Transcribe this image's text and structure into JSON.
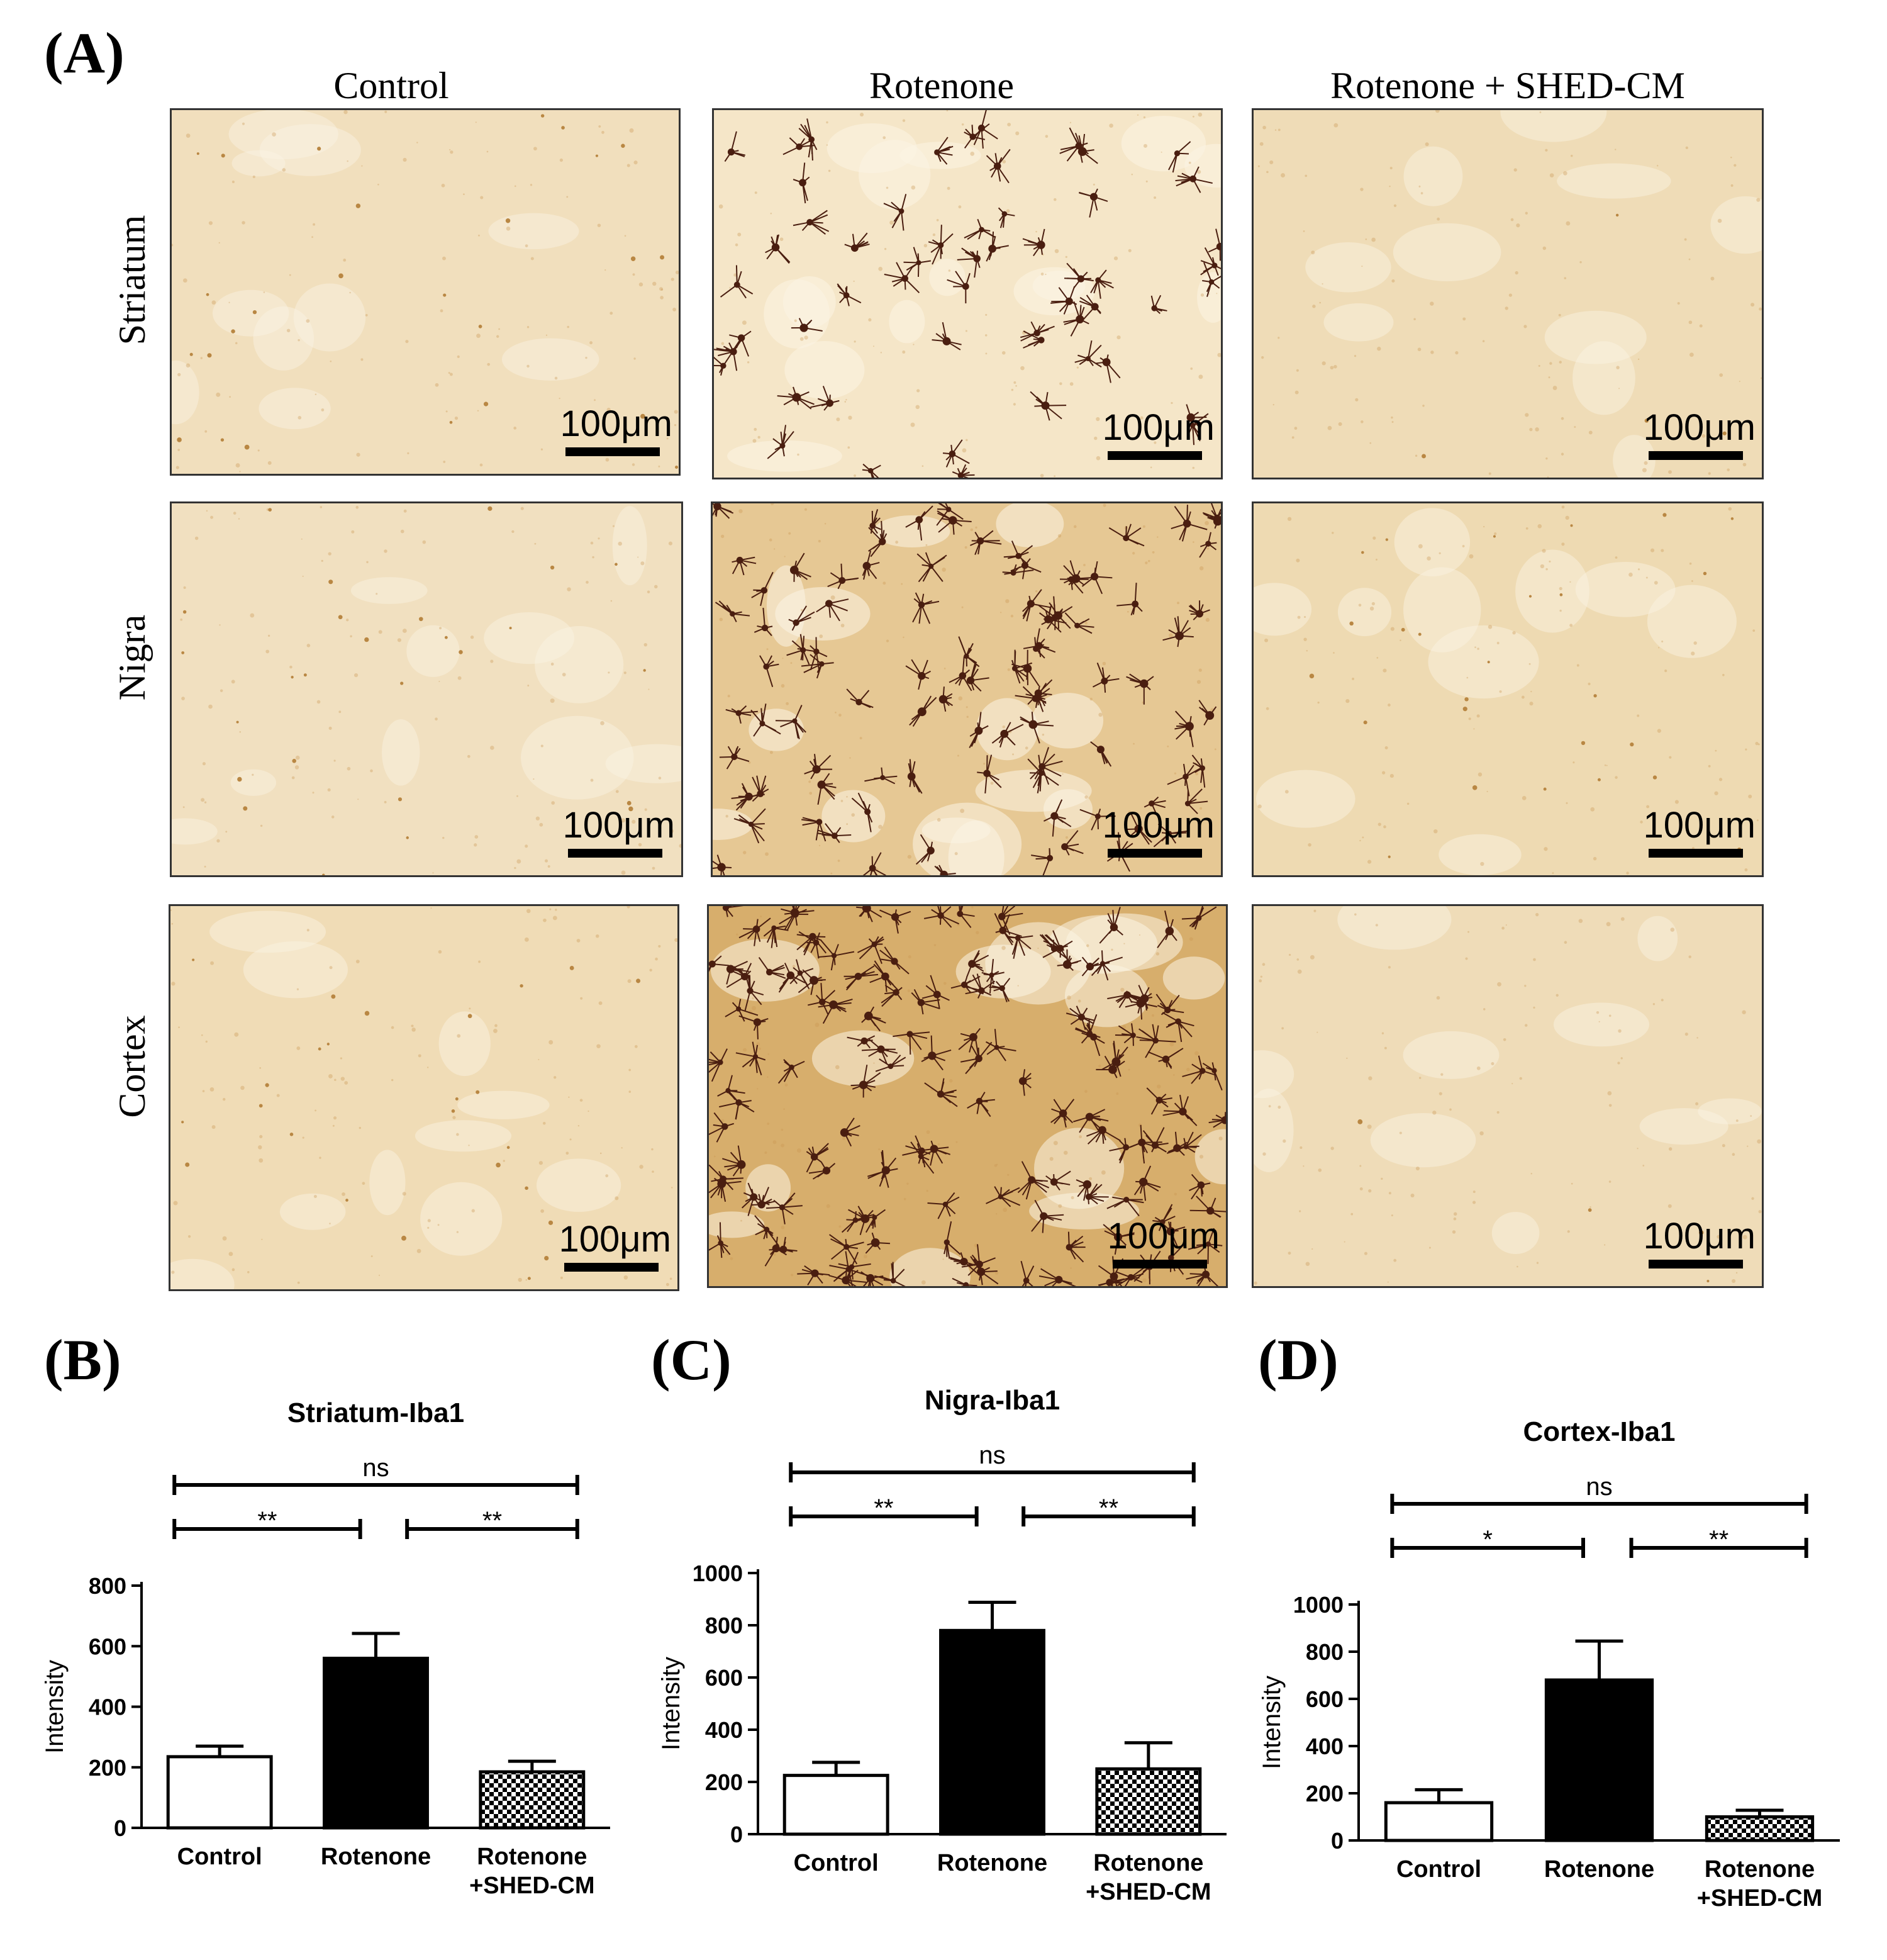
{
  "figure": {
    "panel_labels": [
      "(A)",
      "(B)",
      "(C)",
      "(D)"
    ],
    "columns": [
      "Control",
      "Rotenone",
      "Rotenone + SHED-CM"
    ],
    "rows": [
      "Striatum",
      "Nigra",
      "Cortex"
    ],
    "scale_bar_label": "100μm",
    "micrographs": [
      {
        "row": "Striatum",
        "column": "Control",
        "background": "#f1dfbd",
        "activated_cells": "sparse",
        "stain": "light"
      },
      {
        "row": "Striatum",
        "column": "Rotenone",
        "background": "#f5e6c8",
        "activated_cells": "moderate",
        "stain": "dark"
      },
      {
        "row": "Striatum",
        "column": "Rotenone + SHED-CM",
        "background": "#efdcb7",
        "activated_cells": "rare",
        "stain": "light"
      },
      {
        "row": "Nigra",
        "column": "Control",
        "background": "#f1e0c0",
        "activated_cells": "sparse",
        "stain": "light"
      },
      {
        "row": "Nigra",
        "column": "Rotenone",
        "background": "#e6c894",
        "activated_cells": "dense",
        "stain": "dark"
      },
      {
        "row": "Nigra",
        "column": "Rotenone + SHED-CM",
        "background": "#eedab2",
        "activated_cells": "sparse",
        "stain": "light"
      },
      {
        "row": "Cortex",
        "column": "Control",
        "background": "#f0dcb6",
        "activated_cells": "sparse",
        "stain": "light"
      },
      {
        "row": "Cortex",
        "column": "Rotenone",
        "background": "#d7ae6c",
        "activated_cells": "very dense",
        "stain": "dark"
      },
      {
        "row": "Cortex",
        "column": "Rotenone + SHED-CM",
        "background": "#efdcb8",
        "activated_cells": "rare",
        "stain": "light"
      }
    ]
  },
  "colors": {
    "bar_control": "#ffffff",
    "bar_rotenone": "#000000",
    "bar_shed_pattern": "checkered black/white",
    "stain_dark": "#4a1e10"
  },
  "chart_data": [
    {
      "panel": "(B)",
      "type": "bar",
      "title": "Striatum-Iba1",
      "ylabel": "Intensity",
      "xlabel": "",
      "categories": [
        "Control",
        "Rotenone",
        "Rotenone +SHED-CM"
      ],
      "values": [
        235,
        560,
        185
      ],
      "errors": [
        35,
        82,
        35
      ],
      "ylim": [
        0,
        800
      ],
      "yticks": [
        0,
        200,
        400,
        600,
        800
      ],
      "comparisons": [
        {
          "from": 0,
          "to": 1,
          "label": "**"
        },
        {
          "from": 1,
          "to": 2,
          "label": "**"
        },
        {
          "from": 0,
          "to": 2,
          "label": "ns"
        }
      ]
    },
    {
      "panel": "(C)",
      "type": "bar",
      "title": "Nigra-Iba1",
      "ylabel": "Intensity",
      "xlabel": "",
      "categories": [
        "Control",
        "Rotenone",
        "Rotenone +SHED-CM"
      ],
      "values": [
        225,
        780,
        250
      ],
      "errors": [
        50,
        108,
        100
      ],
      "ylim": [
        0,
        1000
      ],
      "yticks": [
        0,
        200,
        400,
        600,
        800,
        1000
      ],
      "comparisons": [
        {
          "from": 0,
          "to": 1,
          "label": "**"
        },
        {
          "from": 1,
          "to": 2,
          "label": "**"
        },
        {
          "from": 0,
          "to": 2,
          "label": "ns"
        }
      ]
    },
    {
      "panel": "(D)",
      "type": "bar",
      "title": "Cortex-Iba1",
      "ylabel": "Intensity",
      "xlabel": "",
      "categories": [
        "Control",
        "Rotenone",
        "Rotenone +SHED-CM"
      ],
      "values": [
        160,
        680,
        100
      ],
      "errors": [
        55,
        165,
        28
      ],
      "ylim": [
        0,
        1000
      ],
      "yticks": [
        0,
        200,
        400,
        600,
        800,
        1000
      ],
      "comparisons": [
        {
          "from": 0,
          "to": 1,
          "label": "*"
        },
        {
          "from": 1,
          "to": 2,
          "label": "**"
        },
        {
          "from": 0,
          "to": 2,
          "label": "ns"
        }
      ]
    }
  ]
}
